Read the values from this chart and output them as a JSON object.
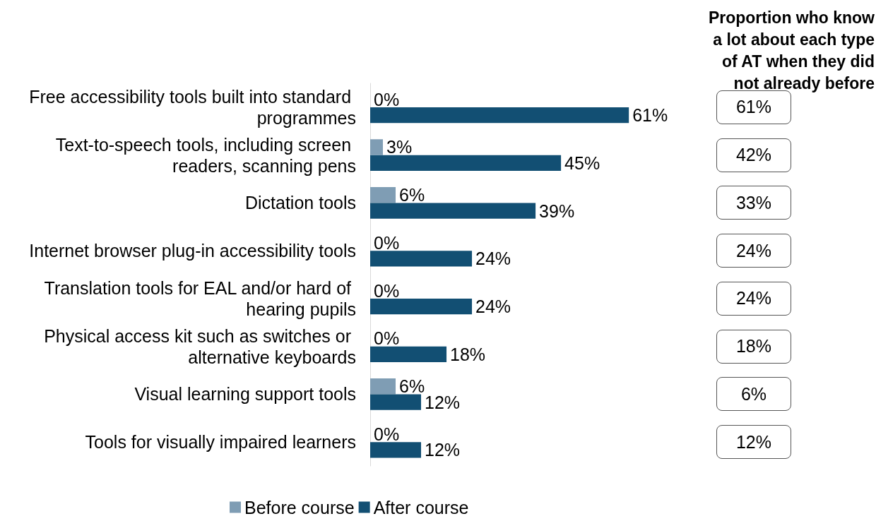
{
  "chart_data": [
    {
      "type": "bar",
      "orientation": "horizontal",
      "categories": [
        "Free accessibility tools built into standard programmes",
        "Text-to-speech tools, including screen readers, scanning pens",
        "Dictation tools",
        "Internet browser plug-in accessibility tools",
        "Translation tools for EAL and/or hard of hearing pupils",
        "Physical access kit such as switches or alternative keyboards",
        "Visual learning support tools",
        "Tools for visually impaired learners"
      ],
      "series": [
        {
          "name": "Before course",
          "color": "#7f9db4",
          "values": [
            0,
            3,
            6,
            0,
            0,
            0,
            6,
            0
          ],
          "value_labels": [
            "0%",
            "3%",
            "6%",
            "0%",
            "0%",
            "0%",
            "6%",
            "0%"
          ]
        },
        {
          "name": "After course",
          "color": "#124f73",
          "values": [
            61,
            45,
            39,
            24,
            24,
            18,
            12,
            12
          ],
          "value_labels": [
            "61%",
            "45%",
            "39%",
            "24%",
            "24%",
            "18%",
            "12%",
            "12%"
          ]
        }
      ],
      "tick_labels": "y",
      "legend": "bottom"
    },
    {
      "type": "other",
      "title": "Proportion who know a lot about each type of AT when they did not already before",
      "annotations": [
        "61%",
        "42%",
        "33%",
        "24%",
        "24%",
        "18%",
        "6%",
        "12%"
      ]
    }
  ]
}
